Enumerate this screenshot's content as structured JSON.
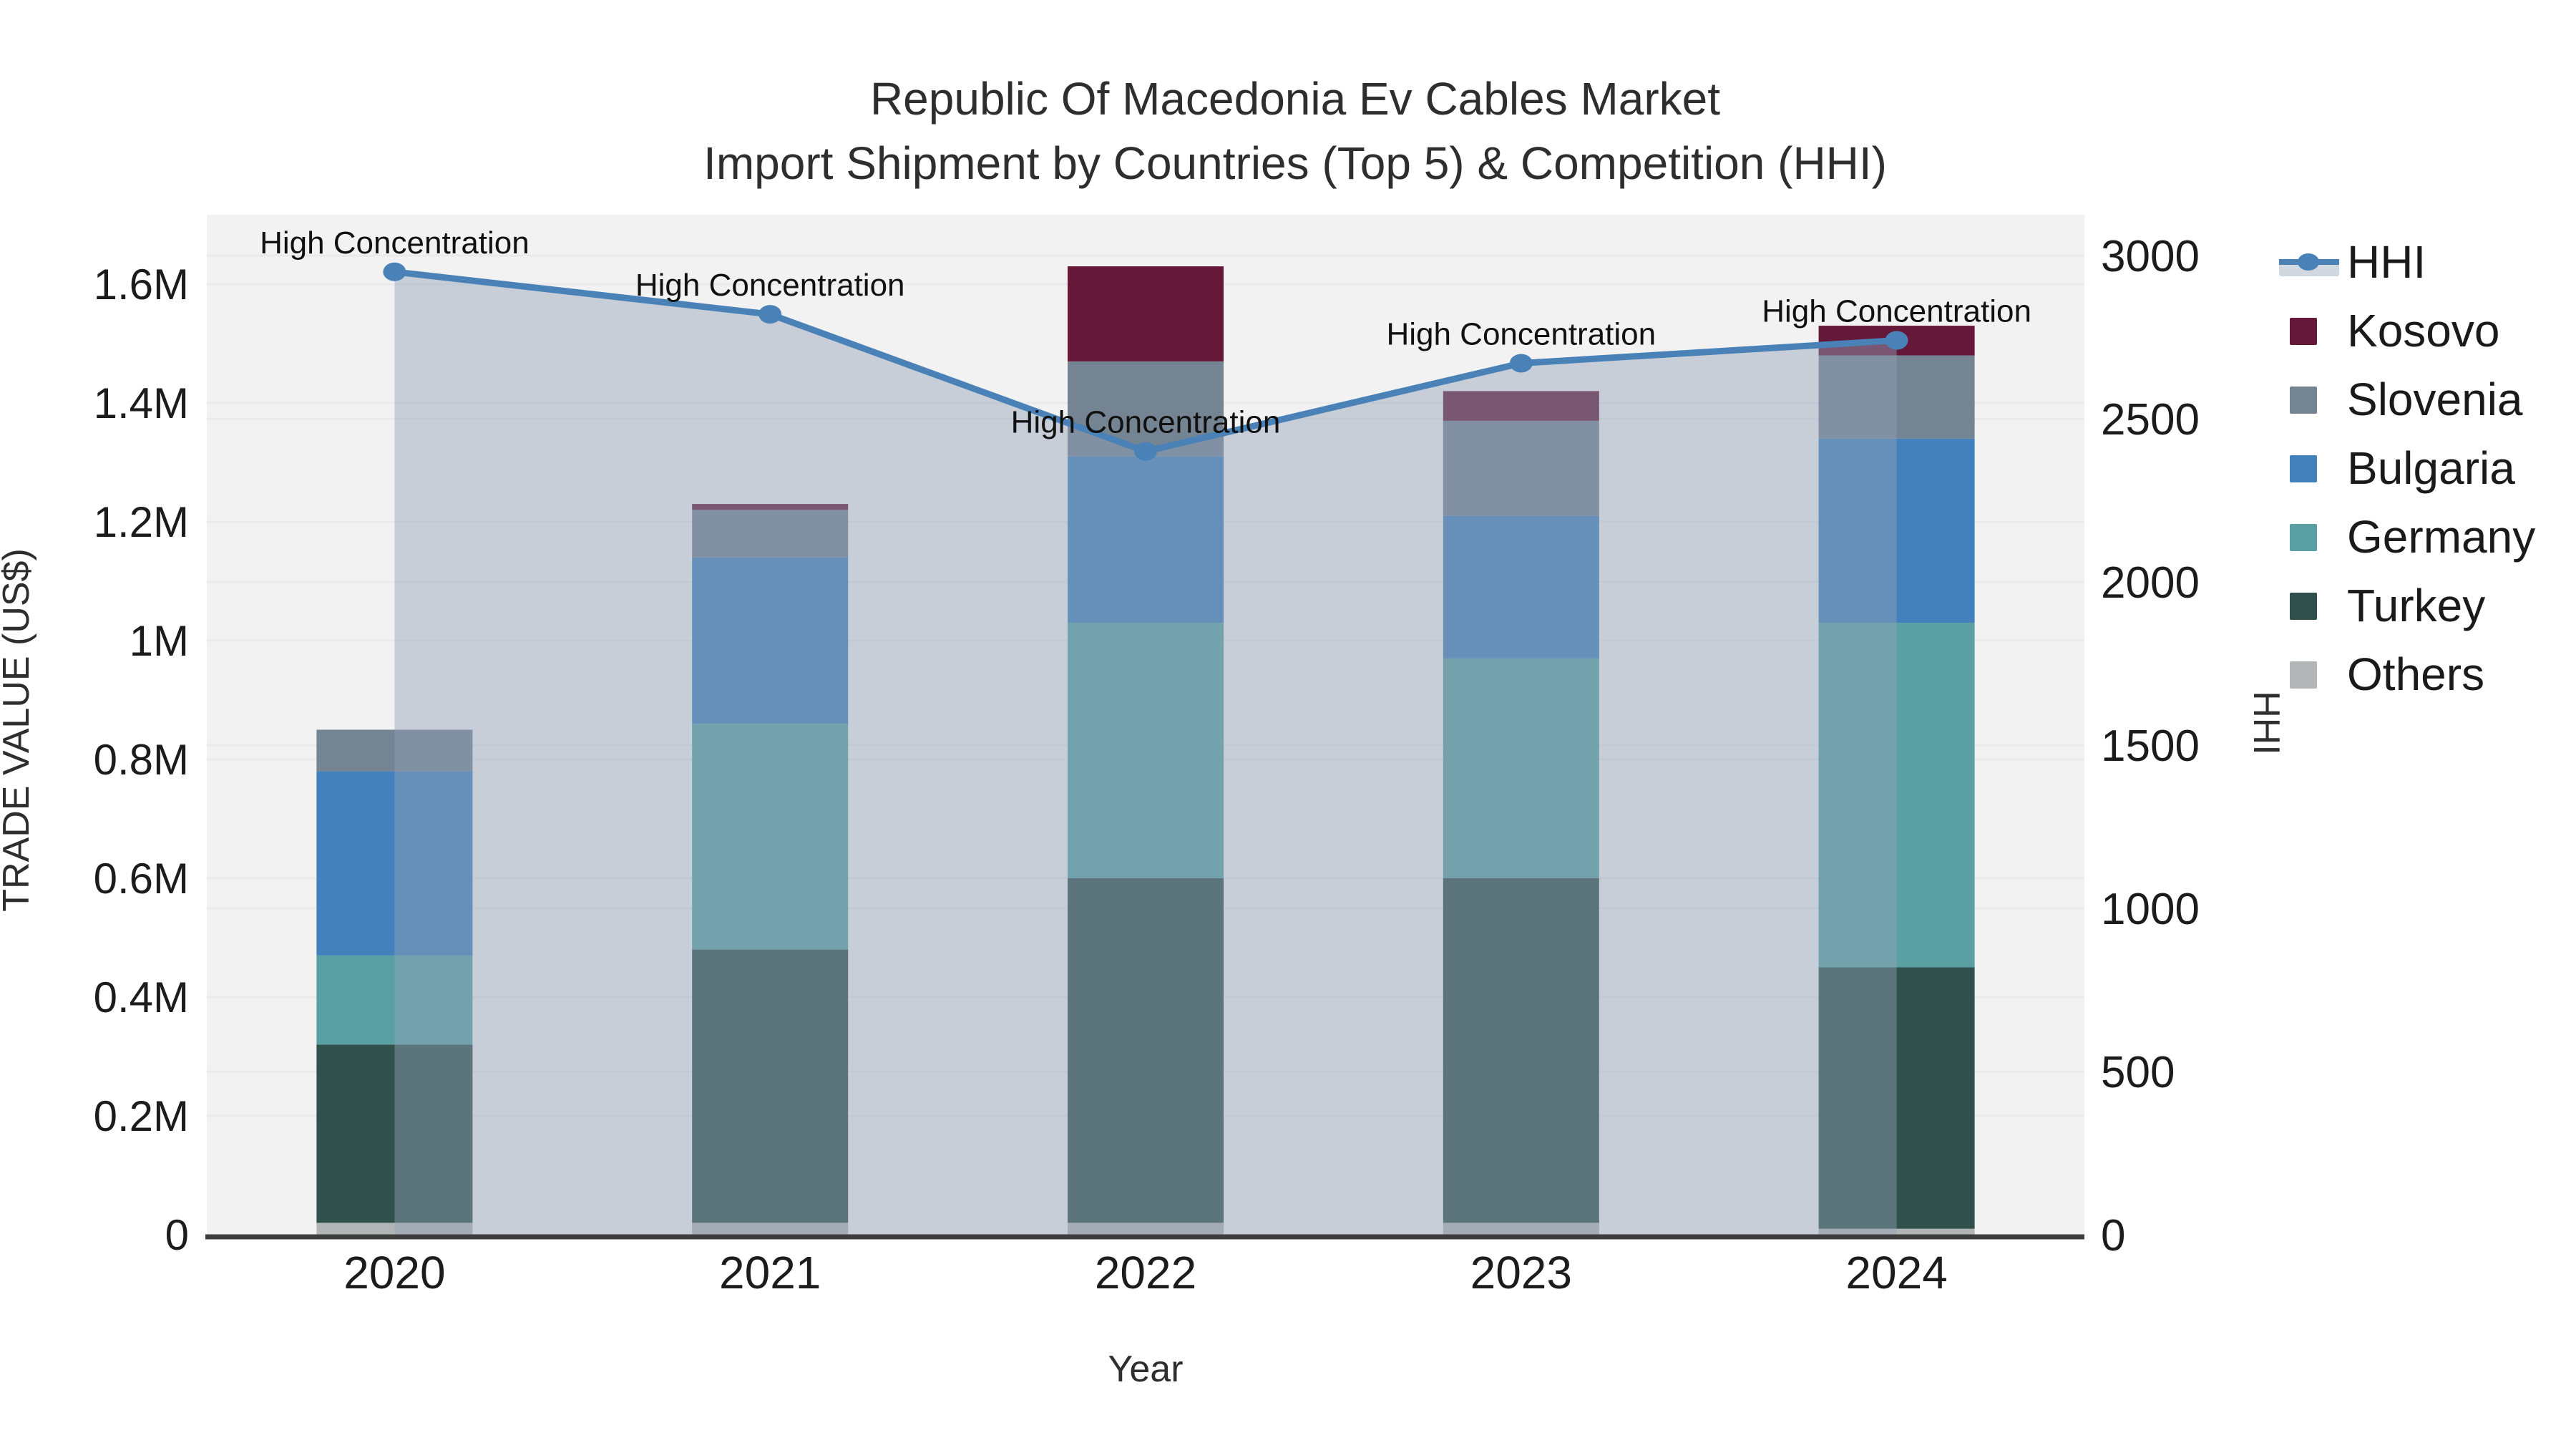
{
  "title": {
    "line1": "Republic Of Macedonia Ev Cables Market",
    "line2": "Import Shipment by Countries (Top 5) & Competition (HHI)"
  },
  "chart_data": {
    "type": "bar+line",
    "title": "Republic Of Macedonia Ev Cables Market — Import Shipment by Countries (Top 5) & Competition (HHI)",
    "categories": [
      "2020",
      "2021",
      "2022",
      "2023",
      "2024"
    ],
    "bar_unit": "million US$",
    "series": [
      {
        "name": "Others",
        "color": "#b2b5b5",
        "values": [
          0.02,
          0.02,
          0.02,
          0.02,
          0.01
        ]
      },
      {
        "name": "Turkey",
        "color": "#30504b",
        "values": [
          0.3,
          0.46,
          0.58,
          0.58,
          0.44
        ]
      },
      {
        "name": "Germany",
        "color": "#5aa0a2",
        "values": [
          0.15,
          0.38,
          0.43,
          0.37,
          0.58
        ]
      },
      {
        "name": "Bulgaria",
        "color": "#4281bc",
        "values": [
          0.31,
          0.28,
          0.28,
          0.24,
          0.31
        ]
      },
      {
        "name": "Slovenia",
        "color": "#748492",
        "values": [
          0.07,
          0.08,
          0.16,
          0.16,
          0.14
        ]
      },
      {
        "name": "Kosovo",
        "color": "#651837",
        "values": [
          0.0,
          0.01,
          0.16,
          0.05,
          0.05
        ]
      }
    ],
    "line_series": {
      "name": "HHI",
      "color": "#4a82b8",
      "area_color": "rgba(146,162,184,0.45)",
      "legend_band_color": "#d2d8e0",
      "values": [
        2950,
        2820,
        2400,
        2670,
        2740
      ]
    },
    "annotations": [
      "High Concentration",
      "High Concentration",
      "High Concentration",
      "High Concentration",
      "High Concentration"
    ],
    "x": {
      "label": "Year"
    },
    "y_left": {
      "label": "TRADE VALUE (US$)",
      "tick_values": [
        0,
        0.2,
        0.4,
        0.6,
        0.8,
        1.0,
        1.2,
        1.4,
        1.6
      ],
      "tick_labels": [
        "0",
        "0.2M",
        "0.4M",
        "0.6M",
        "0.8M",
        "1M",
        "1.2M",
        "1.4M",
        "1.6M"
      ],
      "max": 1.6
    },
    "y_right": {
      "label": "HHI",
      "tick_values": [
        0,
        500,
        1000,
        1500,
        2000,
        2500,
        3000
      ],
      "tick_labels": [
        "0",
        "500",
        "1000",
        "1500",
        "2000",
        "2500",
        "3000"
      ],
      "max": 3000
    },
    "legend_position": "right",
    "grid": true,
    "plot_bg_color": "#f2f2f2",
    "gridline_color": "#e9eaeb",
    "axisline_color": "#3d3d3d"
  },
  "legend": {
    "order": [
      "HHI",
      "Kosovo",
      "Slovenia",
      "Bulgaria",
      "Germany",
      "Turkey",
      "Others"
    ]
  }
}
